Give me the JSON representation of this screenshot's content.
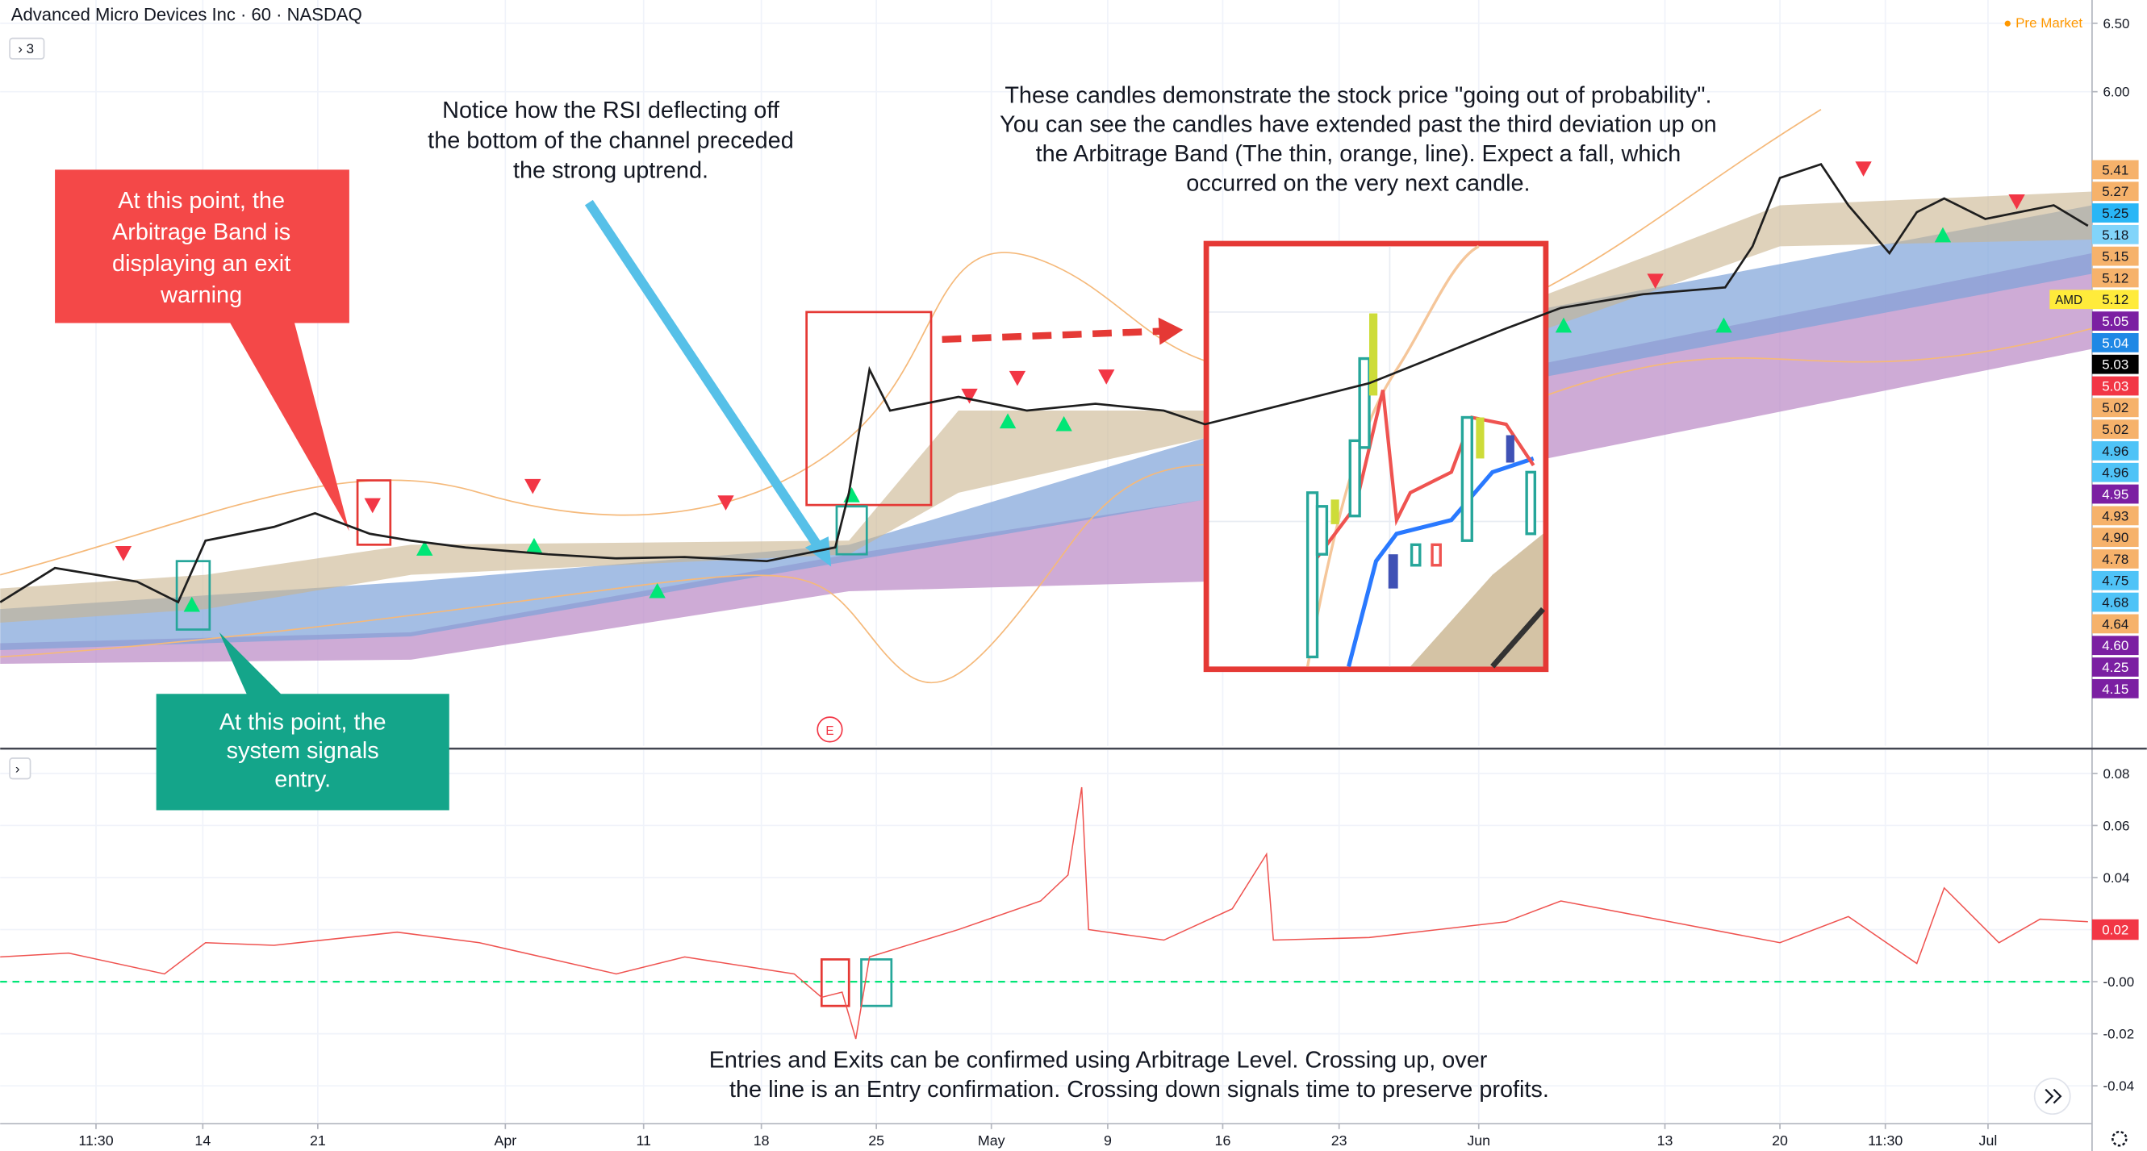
{
  "header": {
    "symbol": "Advanced Micro Devices Inc · 60 · NASDAQ",
    "interval_badge": "3",
    "status": "Pre Market",
    "earnings_marker": "E"
  },
  "chart_data": [
    {
      "type": "line",
      "color": "#1e1e1e",
      "x": [
        0,
        40,
        100,
        130,
        150,
        200,
        230,
        270,
        300,
        340,
        400,
        450,
        500,
        560,
        610,
        620,
        635,
        650,
        700,
        750,
        800,
        850,
        880,
        1000,
        1100,
        1140,
        1200,
        1260,
        1280,
        1300,
        1330,
        1350,
        1380,
        1400,
        1420,
        1450,
        1500,
        1525
      ],
      "values": [
        2.27,
        2.52,
        2.42,
        2.27,
        2.72,
        2.82,
        2.92,
        2.77,
        2.72,
        2.67,
        2.62,
        2.59,
        2.6,
        2.57,
        2.67,
        3.07,
        3.97,
        3.67,
        3.77,
        3.67,
        3.72,
        3.67,
        3.57,
        3.87,
        4.27,
        4.42,
        4.52,
        4.57,
        4.87,
        5.37,
        5.47,
        5.17,
        4.82,
        5.12,
        5.22,
        5.07,
        5.17,
        5.02
      ],
      "xlim": [
        0,
        1528
      ],
      "ylim": [
        1.22,
        6.67
      ],
      "yticks": [
        {
          "value": 6.5,
          "label": "6.50"
        },
        {
          "value": 6,
          "label": "6.00"
        }
      ],
      "grid": true
    },
    {
      "type": "line",
      "color": "#ef5350",
      "x": [
        0,
        50,
        120,
        150,
        200,
        290,
        350,
        450,
        500,
        580,
        600,
        615,
        625,
        635,
        700,
        760,
        780,
        790,
        795,
        850,
        900,
        925,
        930,
        1000,
        1100,
        1140,
        1200,
        1300,
        1350,
        1400,
        1420,
        1460,
        1490,
        1525
      ],
      "values": [
        0.0095,
        0.011,
        0.003,
        0.015,
        0.014,
        0.019,
        0.015,
        0.003,
        0.0095,
        0.003,
        -0.006,
        -0.004,
        -0.022,
        0.0095,
        0.02,
        0.031,
        0.041,
        0.0747,
        0.02,
        0.016,
        0.028,
        0.049,
        0.016,
        0.017,
        0.023,
        0.031,
        0.025,
        0.015,
        0.025,
        0.007,
        0.036,
        0.015,
        0.024,
        0.023
      ],
      "last_value": 0.02,
      "reference_line": 0,
      "xlim": [
        0,
        1528
      ],
      "ylim": [
        -0.054,
        0.089
      ],
      "yticks": [
        0.08,
        0.06,
        0.04,
        0.02,
        {
          "value": 0,
          "label": "-0.00"
        },
        -0.02,
        -0.04
      ],
      "xticks": [
        {
          "value": 70,
          "label": "11:30"
        },
        {
          "value": 148,
          "label": "14"
        },
        {
          "value": 232,
          "label": "21"
        },
        {
          "value": 369,
          "label": "Apr"
        },
        {
          "value": 470,
          "label": "11"
        },
        {
          "value": 556,
          "label": "18"
        },
        {
          "value": 640,
          "label": "25"
        },
        {
          "value": 724,
          "label": "May"
        },
        {
          "value": 809,
          "label": "9"
        },
        {
          "value": 893,
          "label": "16"
        },
        {
          "value": 978,
          "label": "23"
        },
        {
          "value": 1080,
          "label": "Jun"
        },
        {
          "value": 1216,
          "label": "13"
        },
        {
          "value": 1300,
          "label": "20"
        },
        {
          "value": 1377,
          "label": "11:30"
        },
        {
          "value": 1452,
          "label": "Jul"
        }
      ],
      "grid": true
    }
  ],
  "price_badges": [
    {
      "label": "5.41",
      "color": "#f6b26b"
    },
    {
      "label": "5.27",
      "color": "#f6b26b"
    },
    {
      "label": "5.25",
      "color": "#29b6f6"
    },
    {
      "label": "5.18",
      "color": "#81d4fa"
    },
    {
      "label": "5.15",
      "color": "#f6b26b"
    },
    {
      "label": "5.12",
      "color": "#f6b26b"
    },
    {
      "ticker": "AMD",
      "label": "5.12",
      "color": "#ffeb3b"
    },
    {
      "label": "5.05",
      "color": "#7b1fa2"
    },
    {
      "label": "5.04",
      "color": "#1e88e5"
    },
    {
      "label": "5.03",
      "color": "#000000"
    },
    {
      "label": "5.03",
      "color": "#f23645"
    },
    {
      "label": "5.02",
      "color": "#f6b26b"
    },
    {
      "label": "5.02",
      "color": "#f6b26b"
    },
    {
      "label": "4.96",
      "color": "#4fc3f7"
    },
    {
      "label": "4.96",
      "color": "#4fc3f7"
    },
    {
      "label": "4.95",
      "color": "#7b1fa2"
    },
    {
      "label": "4.93",
      "color": "#f6b26b"
    },
    {
      "label": "4.90",
      "color": "#f6b26b"
    },
    {
      "label": "4.78",
      "color": "#f6b26b"
    },
    {
      "label": "4.75",
      "color": "#4fc3f7"
    },
    {
      "label": "4.68",
      "color": "#4fc3f7"
    },
    {
      "label": "4.64",
      "color": "#f6b26b"
    },
    {
      "label": "4.60",
      "color": "#7b1fa2"
    },
    {
      "label": "4.25",
      "color": "#7b1fa2"
    },
    {
      "label": "4.15",
      "color": "#7b1fa2"
    }
  ],
  "annotations": [
    {
      "lines": [
        "At this point, the",
        "Arbitrage Band is",
        "displaying an exit",
        "warning"
      ]
    },
    {
      "lines": [
        "At this point, the",
        "system signals",
        "entry."
      ]
    },
    {
      "lines": [
        "Notice how the RSI deflecting off",
        "the bottom of the channel preceded",
        "the strong uptrend."
      ]
    },
    {
      "lines": [
        "These candles demonstrate the stock price \"going out of probability\".",
        "You can see the candles have extended past the third deviation up on",
        "the Arbitrage Band (The thin, orange, line). Expect a fall, which",
        "occurred on the very next candle."
      ]
    },
    {
      "lines": [
        "Entries and Exits can be confirmed using Arbitrage Level. Crossing up, over",
        "the line is an Entry confirmation. Crossing down signals time to preserve profits."
      ]
    }
  ]
}
